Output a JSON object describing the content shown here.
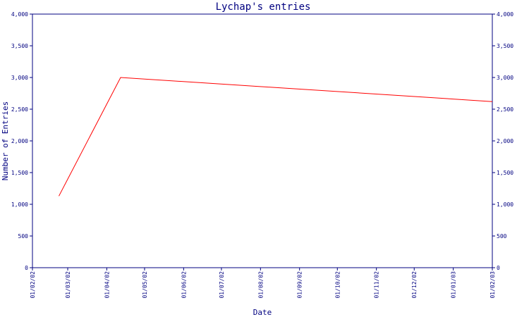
{
  "chart_data": {
    "type": "line",
    "title": "Lychap's entries",
    "xlabel": "Date",
    "ylabel": "Number of Entries",
    "ylim": [
      0,
      4000
    ],
    "y_ticks": [
      0,
      500,
      1000,
      1500,
      2000,
      2500,
      3000,
      3500,
      4000
    ],
    "y_tick_labels": [
      "0",
      "500",
      "1,000",
      "1,500",
      "2,000",
      "2,500",
      "3,000",
      "3,500",
      "4,000"
    ],
    "x_tick_labels": [
      "01/02/02",
      "01/03/02",
      "01/04/02",
      "01/05/02",
      "01/06/02",
      "01/07/02",
      "01/08/02",
      "01/09/02",
      "01/10/02",
      "01/11/02",
      "01/12/02",
      "01/01/03",
      "01/02/03"
    ],
    "series": [
      {
        "color": "#ff0000",
        "x": [
          "2002-02-22",
          "2002-04-12",
          "2003-02-01"
        ],
        "values": [
          1130,
          3000,
          2620
        ]
      }
    ],
    "grid": false,
    "colors": {
      "axis": "#000080",
      "line": "#ff0000",
      "background": "#ffffff"
    }
  }
}
